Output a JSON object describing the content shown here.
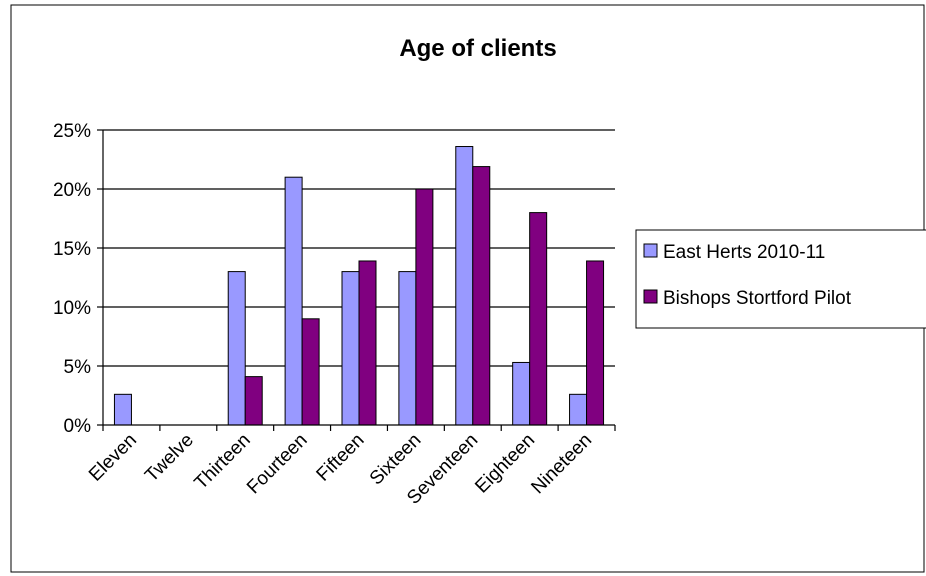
{
  "chart_data": {
    "type": "bar",
    "title": "Age of clients",
    "xlabel": "",
    "ylabel": "",
    "categories": [
      "Eleven",
      "Twelve",
      "Thirteen",
      "Fourteen",
      "Fifteen",
      "Sixteen",
      "Seventeen",
      "Eighteen",
      "Nineteen"
    ],
    "series": [
      {
        "name": "East Herts 2010-11",
        "color": "#9999ff",
        "values": [
          2.6,
          0,
          13,
          21,
          13,
          13,
          23.6,
          5.3,
          2.6
        ]
      },
      {
        "name": "Bishops Stortford Pilot",
        "color": "#800080",
        "values": [
          0,
          0,
          4.1,
          9,
          13.9,
          20,
          21.9,
          18,
          13.9
        ]
      }
    ],
    "ylim": [
      0,
      25
    ],
    "yticks": [
      0,
      5,
      10,
      15,
      20,
      25
    ],
    "ytick_labels": [
      "0%",
      "5%",
      "10%",
      "15%",
      "20%",
      "25%"
    ],
    "grid": true,
    "legend_position": "right"
  }
}
